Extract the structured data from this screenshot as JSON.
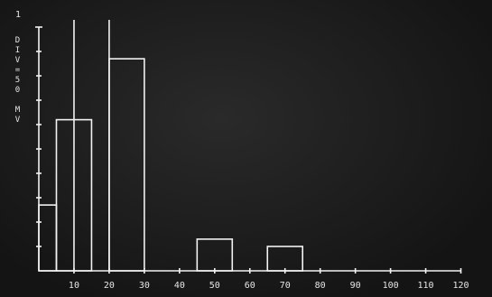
{
  "chart_data": {
    "type": "bar-range",
    "y_label": "DIV=50 MV",
    "bars": [
      {
        "x0": 0,
        "x1": 5,
        "value": 0.27
      },
      {
        "x0": 5,
        "x1": 15,
        "value": 0.62
      },
      {
        "x0": 20,
        "x1": 30,
        "value": 0.87
      },
      {
        "x0": 45,
        "x1": 55,
        "value": 0.13
      },
      {
        "x0": 65,
        "x1": 75,
        "value": 0.1
      }
    ],
    "markers_x": [
      10,
      20
    ],
    "color": "#f2f2f2",
    "xlim": [
      0,
      125
    ],
    "xticks": [
      10,
      20,
      30,
      40,
      50,
      60,
      70,
      80,
      90,
      100,
      110,
      120
    ],
    "ylim": [
      0,
      1
    ],
    "yticks": [
      1
    ],
    "y_minor_ticks": [
      0.1,
      0.2,
      0.3,
      0.4,
      0.5,
      0.6,
      0.7,
      0.8,
      0.9
    ]
  }
}
